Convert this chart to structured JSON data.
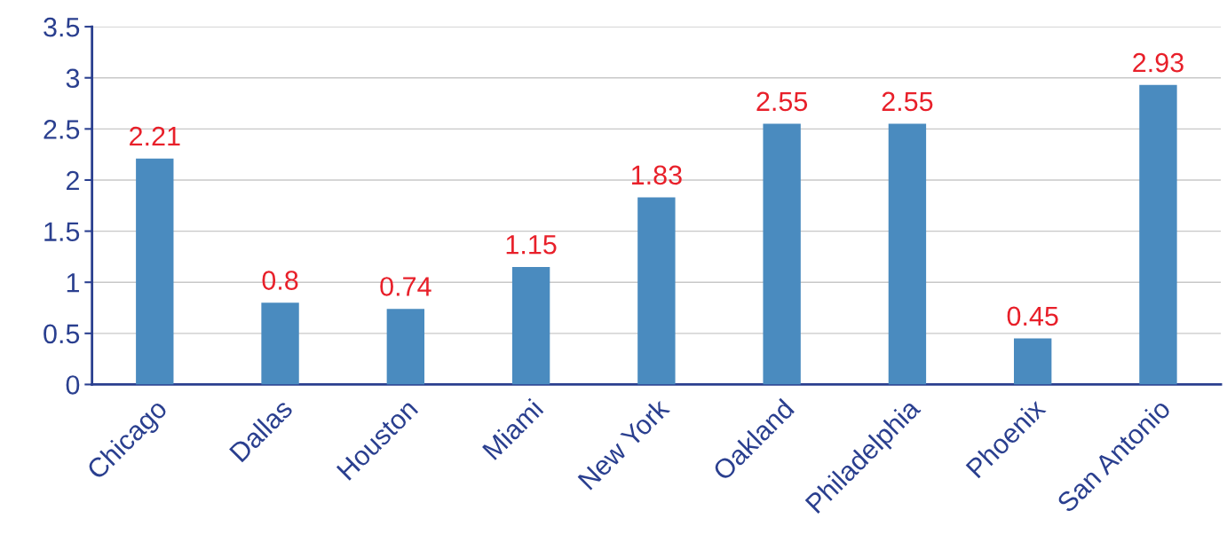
{
  "chart_data": {
    "type": "bar",
    "categories": [
      "Chicago",
      "Dallas",
      "Houston",
      "Miami",
      "New York",
      "Oakland",
      "Philadelphia",
      "Phoenix",
      "San Antonio"
    ],
    "values": [
      2.21,
      0.8,
      0.74,
      1.15,
      1.83,
      2.55,
      2.55,
      0.45,
      2.93
    ],
    "color": "#4a8bbf",
    "ylim": [
      0,
      3.5
    ],
    "yticks": [
      0,
      0.5,
      1,
      1.5,
      2,
      2.5,
      3,
      3.5
    ],
    "grid": "y",
    "data_labels": true,
    "legend": false
  }
}
